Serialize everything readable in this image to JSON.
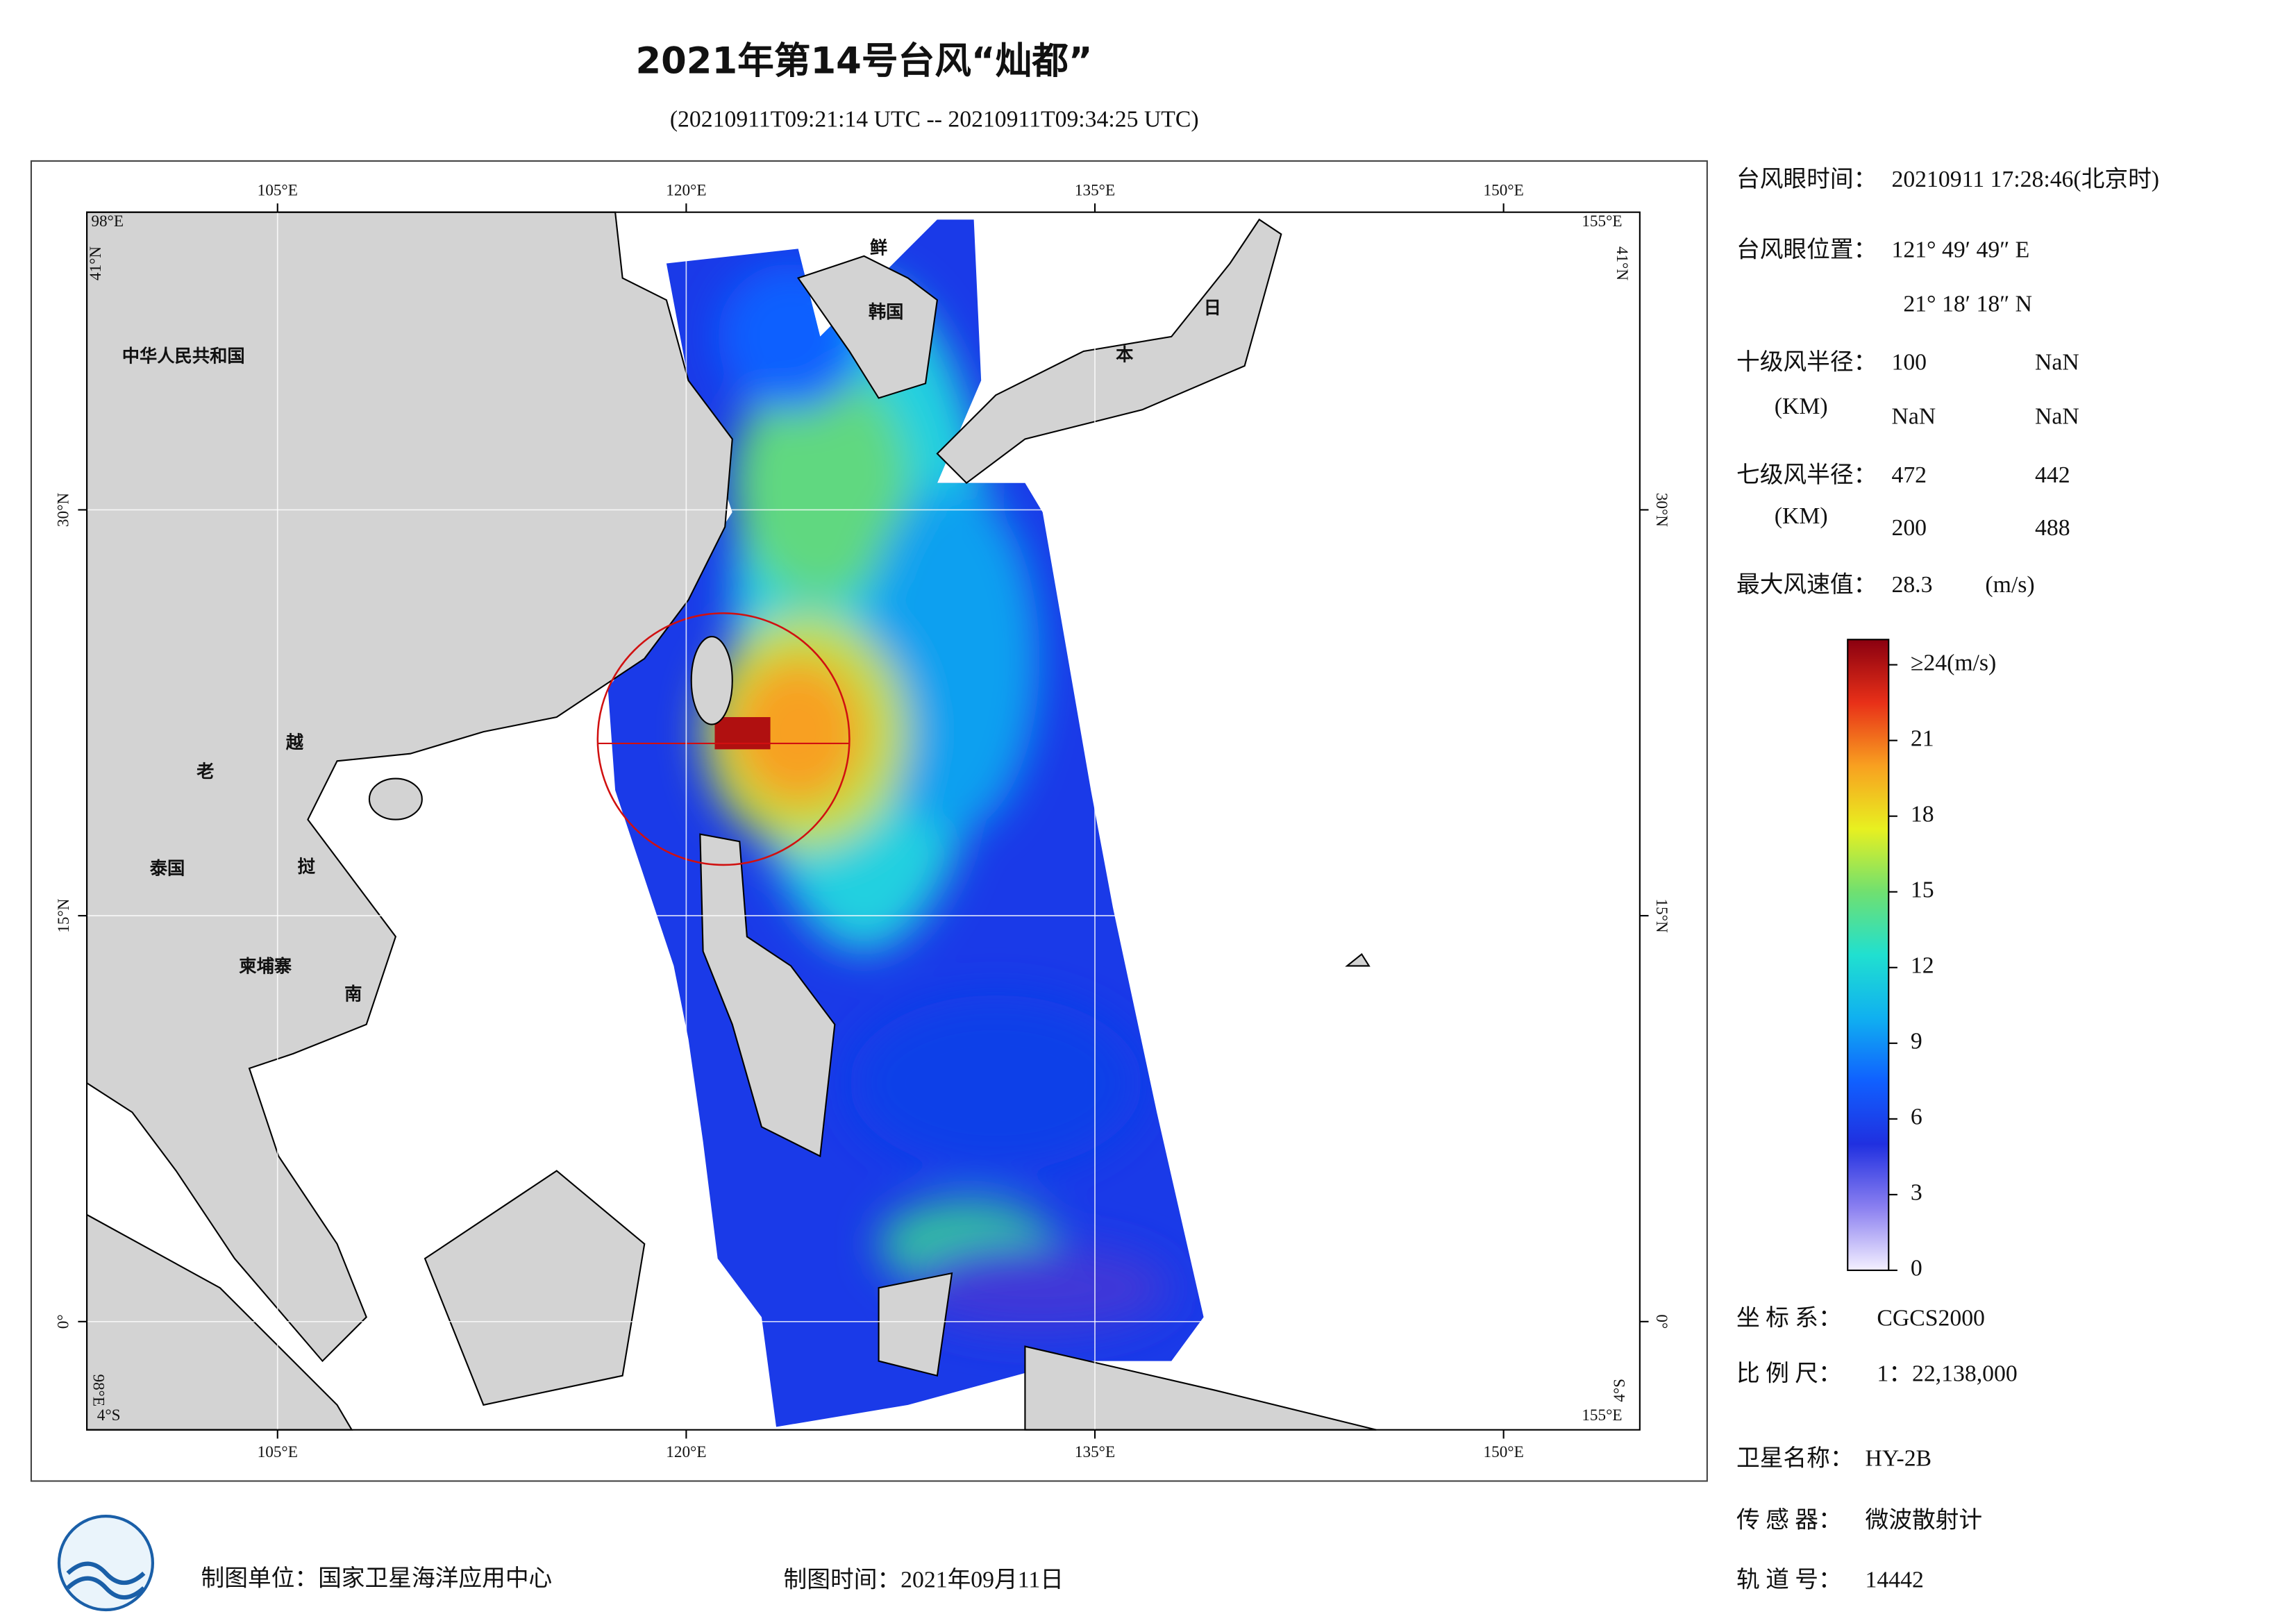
{
  "header": {
    "title": "2021年第14号台风“灿都”",
    "subtitle": "(20210911T09:21:14 UTC -- 20210911T09:34:25 UTC)"
  },
  "map": {
    "lon_ticks": [
      {
        "value": 105,
        "label": "105°E"
      },
      {
        "value": 120,
        "label": "120°E"
      },
      {
        "value": 135,
        "label": "135°E"
      },
      {
        "value": 150,
        "label": "150°E"
      }
    ],
    "lat_ticks": [
      {
        "value": 30,
        "label": "30°N"
      },
      {
        "value": 15,
        "label": "15°N"
      },
      {
        "value": 0,
        "label": "0°"
      }
    ],
    "corners": {
      "top_left_lon": "98°E",
      "top_left_lat": "41°N",
      "top_right_lon": "155°E",
      "top_right_lat": "41°N",
      "bottom_left_lon": "98°E",
      "bottom_left_lat": "4°S",
      "bottom_right_lon": "155°E",
      "bottom_right_lat": "4°S"
    },
    "place_labels": [
      "中华人民共和国",
      "鲜",
      "韩国",
      "日",
      "本",
      "老",
      "越",
      "泰国",
      "挝",
      "柬埔寨",
      "南"
    ]
  },
  "info": {
    "eye_time_label": "台风眼时间：",
    "eye_time": "20210911 17:28:46(北京时)",
    "eye_pos_label": "台风眼位置：",
    "eye_lon": "121° 49′ 49″ E",
    "eye_lat": "21° 18′ 18″ N",
    "r10_label": "十级风半径：",
    "r10_unit": "(KM)",
    "r10_values": [
      100,
      "NaN",
      "NaN",
      "NaN"
    ],
    "r7_label": "七级风半径：",
    "r7_unit": "(KM)",
    "r7_values": [
      472,
      442,
      200,
      488
    ],
    "max_wind_label": "最大风速值：",
    "max_wind": 28.3,
    "max_wind_unit": "(m/s)",
    "crs_label": "坐 标 系：",
    "crs": "CGCS2000",
    "scale_label": "比 例 尺：",
    "scale": "1：22,138,000",
    "satellite_label": "卫星名称：",
    "satellite": "HY-2B",
    "sensor_label": "传 感 器：",
    "sensor": "微波散射计",
    "orbit_label": "轨 道 号：",
    "orbit": 14442
  },
  "colorbar": {
    "ticks": [
      0,
      3,
      6,
      9,
      12,
      15,
      18,
      21,
      {
        "value": 24,
        "label": "≥24(m/s)"
      }
    ],
    "range": [
      0,
      25
    ],
    "colors": [
      "#f4f0ff",
      "#8a7ff0",
      "#2030e0",
      "#1060ff",
      "#10b0f0",
      "#20e0d0",
      "#70e070",
      "#e8f020",
      "#f8a020",
      "#e83018",
      "#8a0010"
    ]
  },
  "footer": {
    "unit": "制图单位：国家卫星海洋应用中心",
    "date": "制图时间：2021年09月11日"
  }
}
